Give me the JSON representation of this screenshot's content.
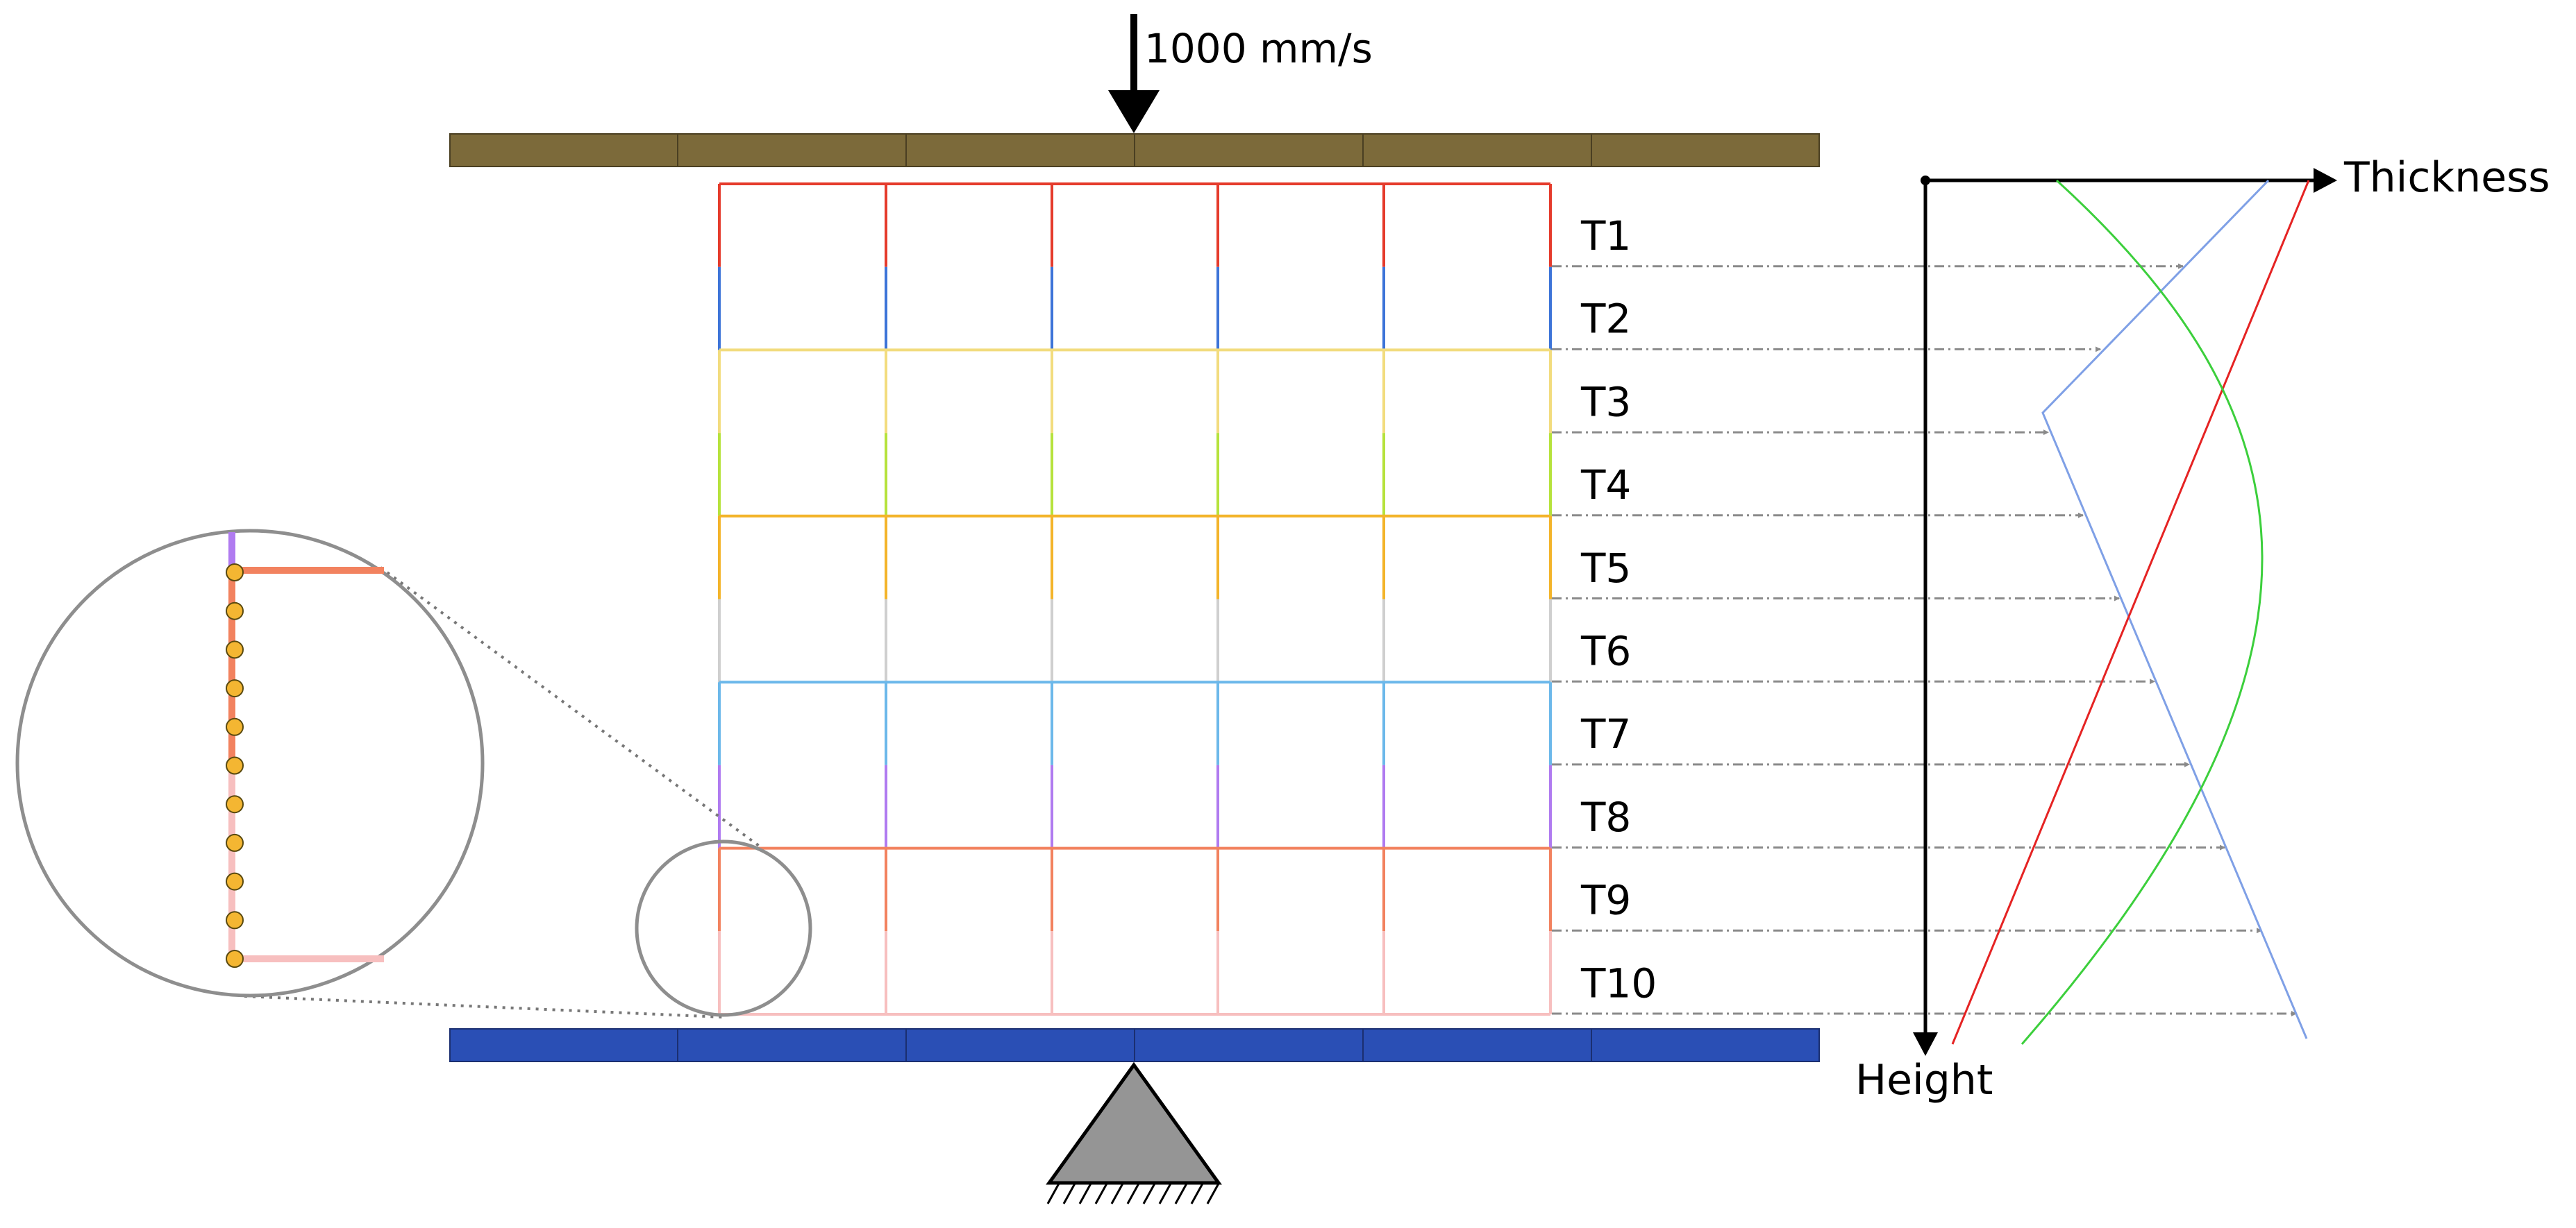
{
  "velocity_label": "1000 mm/s",
  "thickness_axis_label": "Thickness",
  "height_axis_label": "Height",
  "tiers": [
    {
      "label": "T1",
      "color": "#e53b2c"
    },
    {
      "label": "T2",
      "color": "#3d74d8"
    },
    {
      "label": "T3",
      "color": "#f2dc7e"
    },
    {
      "label": "T4",
      "color": "#b6e23c"
    },
    {
      "label": "T5",
      "color": "#f3b42a"
    },
    {
      "label": "T6",
      "color": "#cfcfcf"
    },
    {
      "label": "T7",
      "color": "#6cb8ea"
    },
    {
      "label": "T8",
      "color": "#b07bf0"
    },
    {
      "label": "T9",
      "color": "#f2825f"
    },
    {
      "label": "T10",
      "color": "#f7bfbf"
    }
  ],
  "colors": {
    "top_plate": "#7c6a3a",
    "bottom_plate": "#2a4fb5",
    "support": "#959595",
    "arrow_guides": "#8a8a8a",
    "profile_blue": "#7fa0e6",
    "profile_red": "#e52323",
    "profile_green": "#3ccf3c",
    "node_fill": "#f4b632"
  }
}
